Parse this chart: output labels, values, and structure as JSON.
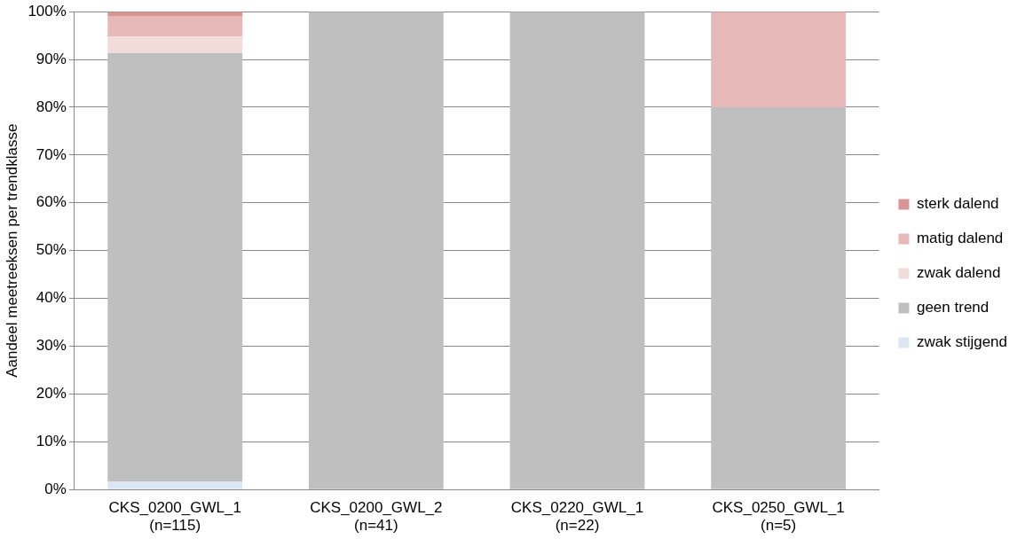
{
  "chart_data": {
    "type": "bar",
    "stacked": true,
    "ylabel": "Aandeel meetreeksen per trendklasse",
    "categories": [
      "CKS_0200_GWL_1\n(n=115)",
      "CKS_0200_GWL_2\n(n=41)",
      "CKS_0220_GWL_1\n(n=22)",
      "CKS_0250_GWL_1\n(n=5)"
    ],
    "series": [
      {
        "name": "zwak stijgend",
        "color": "#dce6f2",
        "values": [
          1.7,
          0,
          0,
          0
        ]
      },
      {
        "name": "geen trend",
        "color": "#bfbfbf",
        "values": [
          89.6,
          100,
          100,
          80
        ]
      },
      {
        "name": "zwak dalend",
        "color": "#f2dcdb",
        "values": [
          3.5,
          0,
          0,
          0
        ]
      },
      {
        "name": "matig dalend",
        "color": "#e6b9b8",
        "values": [
          4.3,
          0,
          0,
          20
        ]
      },
      {
        "name": "sterk dalend",
        "color": "#d99594",
        "values": [
          0.9,
          0,
          0,
          0
        ]
      }
    ],
    "ylim": [
      0,
      100
    ],
    "yticks": [
      {
        "value": 0,
        "label": "0%"
      },
      {
        "value": 10,
        "label": "10%"
      },
      {
        "value": 20,
        "label": "20%"
      },
      {
        "value": 30,
        "label": "30%"
      },
      {
        "value": 40,
        "label": "40%"
      },
      {
        "value": 50,
        "label": "50%"
      },
      {
        "value": 60,
        "label": "60%"
      },
      {
        "value": 70,
        "label": "70%"
      },
      {
        "value": 80,
        "label": "80%"
      },
      {
        "value": 90,
        "label": "90%"
      },
      {
        "value": 100,
        "label": "100%"
      }
    ],
    "grid": "y",
    "legend": "right"
  }
}
